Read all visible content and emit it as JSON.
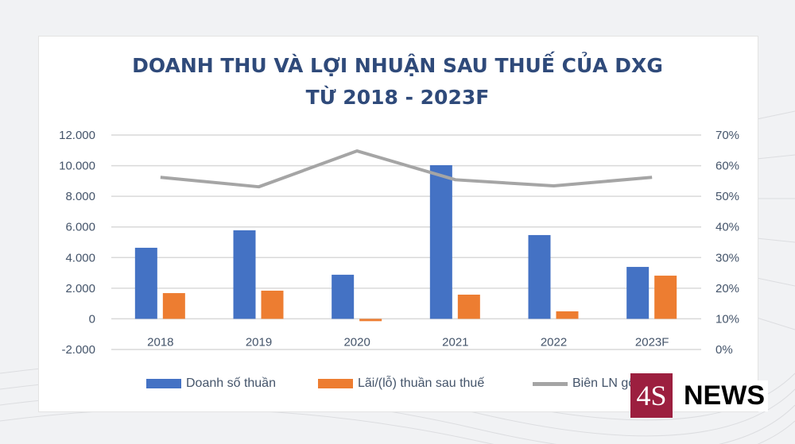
{
  "chart_data": {
    "type": "bar",
    "title": "DOANH THU VÀ LỢI NHUẬN SAU THUẾ CỦA DXG",
    "subtitle": "TỪ 2018 - 2023F",
    "categories": [
      "2018",
      "2019",
      "2020",
      "2021",
      "2022",
      "2023F"
    ],
    "series": [
      {
        "name": "Doanh số thuần",
        "type": "bar",
        "axis": "left",
        "color": "#4472c4",
        "values": [
          4640,
          5780,
          2880,
          10030,
          5470,
          3390
        ]
      },
      {
        "name": "Lãi/(lỗ) thuần sau thuế",
        "type": "bar",
        "axis": "left",
        "color": "#ed7d31",
        "values": [
          1680,
          1840,
          -150,
          1580,
          490,
          2820
        ]
      },
      {
        "name": "Biên LN gộp",
        "type": "line",
        "axis": "right",
        "color": "#a5a5a5",
        "values": [
          56.2,
          53.1,
          64.8,
          55.4,
          53.4,
          56.2
        ]
      }
    ],
    "y_left": {
      "range": [
        -2000,
        12000
      ],
      "ticks": [
        "-2.000",
        "0",
        "2.000",
        "4.000",
        "6.000",
        "8.000",
        "10.000",
        "12.000"
      ]
    },
    "y_right": {
      "range": [
        0,
        70
      ],
      "ticks": [
        "0%",
        "10%",
        "20%",
        "30%",
        "40%",
        "50%",
        "60%",
        "70%"
      ]
    },
    "grid": true,
    "legend": "bottom"
  },
  "logo": {
    "mark": "4S",
    "text": "NEWS",
    "color": "#9c1f3f"
  }
}
